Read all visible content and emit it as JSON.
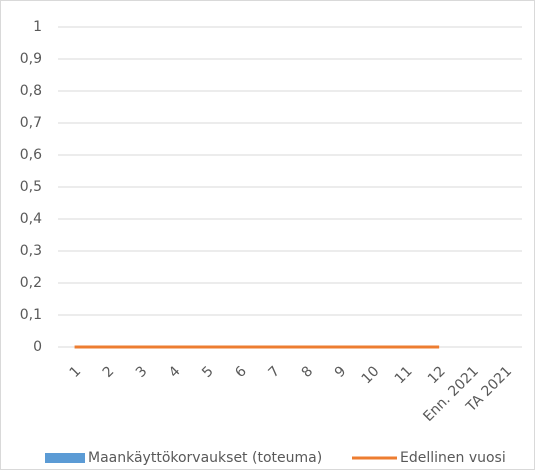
{
  "chart_data": {
    "type": "combo",
    "categories": [
      "1",
      "2",
      "3",
      "4",
      "5",
      "6",
      "7",
      "8",
      "9",
      "10",
      "11",
      "12",
      "Enn. 2021",
      "TA 2021"
    ],
    "series": [
      {
        "name": "Maankäyttökorvaukset (toteuma)",
        "type": "bar",
        "color": "#5b9bd5",
        "values": [
          0,
          0,
          0,
          0,
          0,
          0,
          0,
          0,
          0,
          0,
          0,
          0,
          null,
          null
        ]
      },
      {
        "name": "Edellinen vuosi",
        "type": "line",
        "color": "#ed7d31",
        "values": [
          0,
          0,
          0,
          0,
          0,
          0,
          0,
          0,
          0,
          0,
          0,
          0,
          null,
          null
        ]
      }
    ],
    "ylim": [
      0,
      1
    ],
    "yticks": [
      0,
      {
        "value": 0.1,
        "label": "0,1"
      },
      {
        "value": 0.2,
        "label": "0,2"
      },
      {
        "value": 0.3,
        "label": "0,3"
      },
      {
        "value": 0.4,
        "label": "0,4"
      },
      {
        "value": 0.5,
        "label": "0,5"
      },
      {
        "value": 0.6,
        "label": "0,6"
      },
      {
        "value": 0.7,
        "label": "0,7"
      },
      {
        "value": 0.8,
        "label": "0,8"
      },
      {
        "value": 0.9,
        "label": "0,9"
      },
      1
    ],
    "grid": true,
    "legend": "bottom"
  }
}
